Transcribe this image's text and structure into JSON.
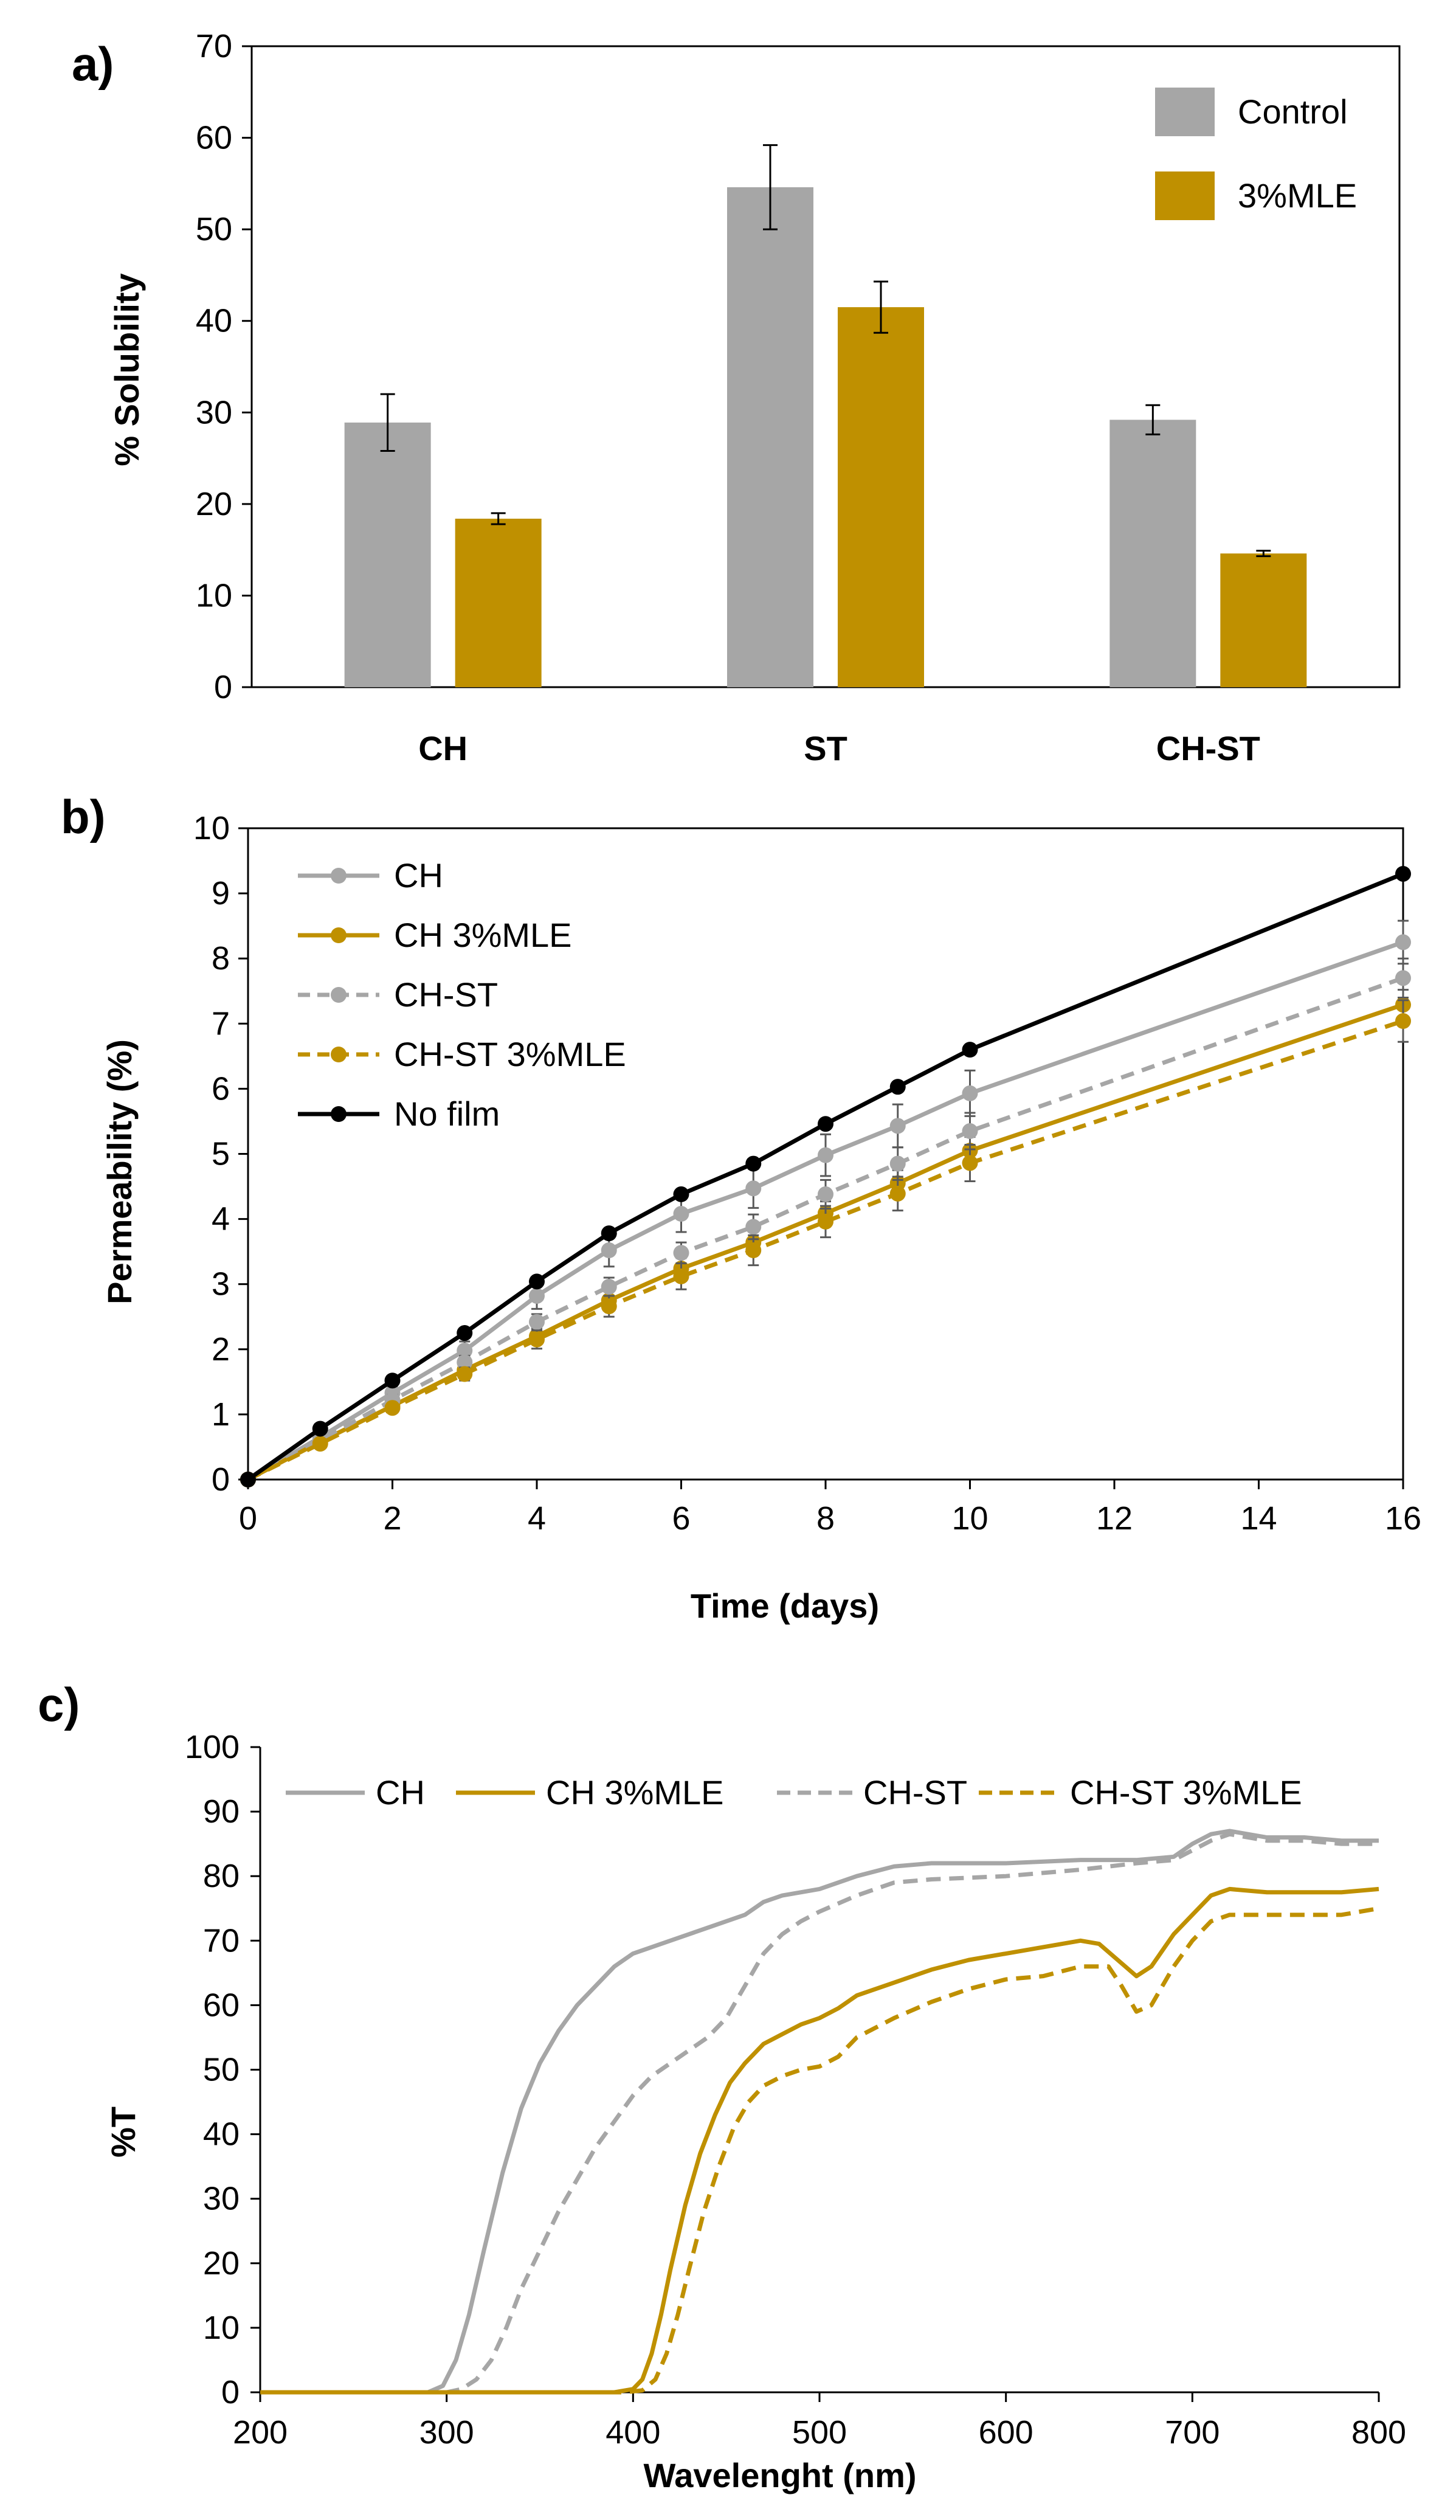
{
  "colors": {
    "gray": "#a6a6a6",
    "gold": "#bf9000",
    "black": "#000000"
  },
  "chart_data": [
    {
      "panel": "a)",
      "type": "bar",
      "ylabel": "% Solubility",
      "xlabel": "",
      "ylim": [
        0,
        70
      ],
      "yticks": [
        "0",
        "10",
        "20",
        "30",
        "40",
        "50",
        "60",
        "70"
      ],
      "categories": [
        "CH",
        "ST",
        "CH-ST"
      ],
      "series": [
        {
          "name": "Control",
          "color": "#a6a6a6",
          "values": [
            28.9,
            54.6,
            29.2
          ],
          "errors": [
            3.1,
            4.6,
            1.6
          ]
        },
        {
          "name": "3%MLE",
          "color": "#bf9000",
          "values": [
            18.4,
            41.5,
            14.6
          ],
          "errors": [
            0.6,
            2.8,
            0.3
          ]
        }
      ],
      "legend_position": "top-right"
    },
    {
      "panel": "b)",
      "type": "line",
      "xlabel": "Time (days)",
      "ylabel": "Permeability (%)",
      "xlim": [
        0,
        16
      ],
      "ylim": [
        0,
        10
      ],
      "xticks": [
        "0",
        "2",
        "4",
        "6",
        "8",
        "10",
        "12",
        "14",
        "16"
      ],
      "yticks": [
        "0",
        "1",
        "2",
        "3",
        "4",
        "5",
        "6",
        "7",
        "8",
        "9",
        "10"
      ],
      "x": [
        0,
        1,
        2,
        3,
        4,
        5,
        6,
        7,
        8,
        9,
        10,
        16
      ],
      "series": [
        {
          "name": "CH",
          "color": "#a6a6a6",
          "dashed": false,
          "values": [
            0,
            0.65,
            1.33,
            1.98,
            2.82,
            3.52,
            4.08,
            4.47,
            4.98,
            5.43,
            5.93,
            8.25
          ],
          "errors": [
            0,
            0.06,
            0.1,
            0.14,
            0.2,
            0.25,
            0.28,
            0.3,
            0.32,
            0.33,
            0.35,
            0.33
          ]
        },
        {
          "name": "CH 3%MLE",
          "color": "#bf9000",
          "dashed": false,
          "values": [
            0,
            0.58,
            1.13,
            1.68,
            2.2,
            2.75,
            3.24,
            3.64,
            4.09,
            4.55,
            5.05,
            7.29
          ],
          "errors": [
            0,
            0.04,
            0.07,
            0.09,
            0.12,
            0.14,
            0.16,
            0.17,
            0.18,
            0.2,
            0.21,
            0.23
          ]
        },
        {
          "name": "CH-ST",
          "color": "#a6a6a6",
          "dashed": true,
          "values": [
            0,
            0.6,
            1.22,
            1.8,
            2.42,
            2.96,
            3.48,
            3.88,
            4.38,
            4.85,
            5.35,
            7.7
          ],
          "errors": [
            0,
            0.05,
            0.08,
            0.1,
            0.12,
            0.14,
            0.16,
            0.19,
            0.22,
            0.25,
            0.28,
            0.3
          ]
        },
        {
          "name": "CH-ST 3%MLE",
          "color": "#bf9000",
          "dashed": true,
          "values": [
            0,
            0.55,
            1.1,
            1.62,
            2.15,
            2.66,
            3.12,
            3.52,
            3.96,
            4.39,
            4.86,
            7.04
          ],
          "errors": [
            0,
            0.04,
            0.07,
            0.1,
            0.14,
            0.16,
            0.2,
            0.23,
            0.24,
            0.26,
            0.28,
            0.32
          ]
        },
        {
          "name": "No film",
          "color": "#000000",
          "dashed": false,
          "values": [
            0,
            0.78,
            1.52,
            2.25,
            3.04,
            3.78,
            4.38,
            4.85,
            5.46,
            6.03,
            6.6,
            9.3
          ],
          "errors": []
        }
      ],
      "legend_position": "top-left"
    },
    {
      "panel": "c)",
      "type": "line",
      "xlabel": "Wavelenght (nm)",
      "ylabel": "%T",
      "xlim": [
        200,
        800
      ],
      "ylim": [
        0,
        100
      ],
      "xticks": [
        "200",
        "300",
        "400",
        "500",
        "600",
        "700",
        "800"
      ],
      "yticks": [
        "0",
        "10",
        "20",
        "30",
        "40",
        "50",
        "60",
        "70",
        "80",
        "90",
        "100"
      ],
      "series": [
        {
          "name": "CH",
          "color": "#a6a6a6",
          "dashed": false,
          "points": [
            [
              200,
              0
            ],
            [
              290,
              0
            ],
            [
              298,
              1
            ],
            [
              305,
              5
            ],
            [
              312,
              12
            ],
            [
              320,
              22
            ],
            [
              330,
              34
            ],
            [
              340,
              44
            ],
            [
              350,
              51
            ],
            [
              360,
              56
            ],
            [
              370,
              60
            ],
            [
              380,
              63
            ],
            [
              390,
              66
            ],
            [
              400,
              68
            ],
            [
              420,
              70
            ],
            [
              440,
              72
            ],
            [
              460,
              74
            ],
            [
              470,
              76
            ],
            [
              480,
              77
            ],
            [
              500,
              78
            ],
            [
              520,
              80
            ],
            [
              540,
              81.5
            ],
            [
              560,
              82
            ],
            [
              600,
              82
            ],
            [
              640,
              82.5
            ],
            [
              670,
              82.5
            ],
            [
              690,
              83
            ],
            [
              700,
              85
            ],
            [
              710,
              86.5
            ],
            [
              720,
              87
            ],
            [
              740,
              86
            ],
            [
              760,
              86
            ],
            [
              780,
              85.5
            ],
            [
              800,
              85.5
            ]
          ]
        },
        {
          "name": "CH 3%MLE",
          "color": "#bf9000",
          "dashed": false,
          "points": [
            [
              200,
              0
            ],
            [
              390,
              0
            ],
            [
              400,
              0.5
            ],
            [
              405,
              2
            ],
            [
              410,
              6
            ],
            [
              415,
              12
            ],
            [
              420,
              19
            ],
            [
              428,
              29
            ],
            [
              436,
              37
            ],
            [
              444,
              43
            ],
            [
              452,
              48
            ],
            [
              460,
              51
            ],
            [
              470,
              54
            ],
            [
              480,
              55.5
            ],
            [
              490,
              57
            ],
            [
              500,
              58
            ],
            [
              510,
              59.5
            ],
            [
              520,
              61.5
            ],
            [
              540,
              63.5
            ],
            [
              560,
              65.5
            ],
            [
              580,
              67
            ],
            [
              600,
              68
            ],
            [
              620,
              69
            ],
            [
              640,
              70
            ],
            [
              650,
              69.5
            ],
            [
              660,
              67
            ],
            [
              670,
              64.5
            ],
            [
              678,
              66
            ],
            [
              690,
              71
            ],
            [
              700,
              74
            ],
            [
              710,
              77
            ],
            [
              720,
              78
            ],
            [
              740,
              77.5
            ],
            [
              760,
              77.5
            ],
            [
              780,
              77.5
            ],
            [
              800,
              78
            ]
          ]
        },
        {
          "name": "CH-ST",
          "color": "#a6a6a6",
          "dashed": true,
          "points": [
            [
              200,
              0
            ],
            [
              300,
              0
            ],
            [
              308,
              0.5
            ],
            [
              316,
              2
            ],
            [
              324,
              5
            ],
            [
              332,
              10
            ],
            [
              340,
              16
            ],
            [
              350,
              22
            ],
            [
              360,
              28
            ],
            [
              370,
              33
            ],
            [
              380,
              38
            ],
            [
              390,
              42
            ],
            [
              400,
              46
            ],
            [
              410,
              49
            ],
            [
              420,
              51
            ],
            [
              430,
              53
            ],
            [
              440,
              55
            ],
            [
              450,
              58
            ],
            [
              460,
              63
            ],
            [
              470,
              68
            ],
            [
              480,
              71
            ],
            [
              490,
              73
            ],
            [
              500,
              74.5
            ],
            [
              520,
              77
            ],
            [
              540,
              79
            ],
            [
              560,
              79.5
            ],
            [
              600,
              80
            ],
            [
              640,
              81
            ],
            [
              670,
              82
            ],
            [
              690,
              82.5
            ],
            [
              700,
              84
            ],
            [
              710,
              85.5
            ],
            [
              720,
              86.5
            ],
            [
              740,
              85.5
            ],
            [
              760,
              85.5
            ],
            [
              780,
              85
            ],
            [
              800,
              85
            ]
          ]
        },
        {
          "name": "CH-ST 3%MLE",
          "color": "#bf9000",
          "dashed": true,
          "points": [
            [
              200,
              0
            ],
            [
              395,
              0
            ],
            [
              405,
              0.3
            ],
            [
              412,
              2
            ],
            [
              418,
              6
            ],
            [
              424,
              12
            ],
            [
              430,
              19
            ],
            [
              438,
              28
            ],
            [
              446,
              35
            ],
            [
              454,
              41
            ],
            [
              462,
              45
            ],
            [
              470,
              47.5
            ],
            [
              480,
              49
            ],
            [
              490,
              50
            ],
            [
              500,
              50.5
            ],
            [
              510,
              52
            ],
            [
              520,
              55
            ],
            [
              540,
              58
            ],
            [
              560,
              60.5
            ],
            [
              580,
              62.5
            ],
            [
              600,
              64
            ],
            [
              620,
              64.5
            ],
            [
              640,
              66
            ],
            [
              655,
              66
            ],
            [
              662,
              63
            ],
            [
              670,
              59
            ],
            [
              678,
              60
            ],
            [
              690,
              66
            ],
            [
              700,
              70
            ],
            [
              710,
              73
            ],
            [
              720,
              74
            ],
            [
              740,
              74
            ],
            [
              760,
              74
            ],
            [
              780,
              74
            ],
            [
              800,
              75
            ]
          ]
        }
      ],
      "legend_position": "top"
    }
  ]
}
